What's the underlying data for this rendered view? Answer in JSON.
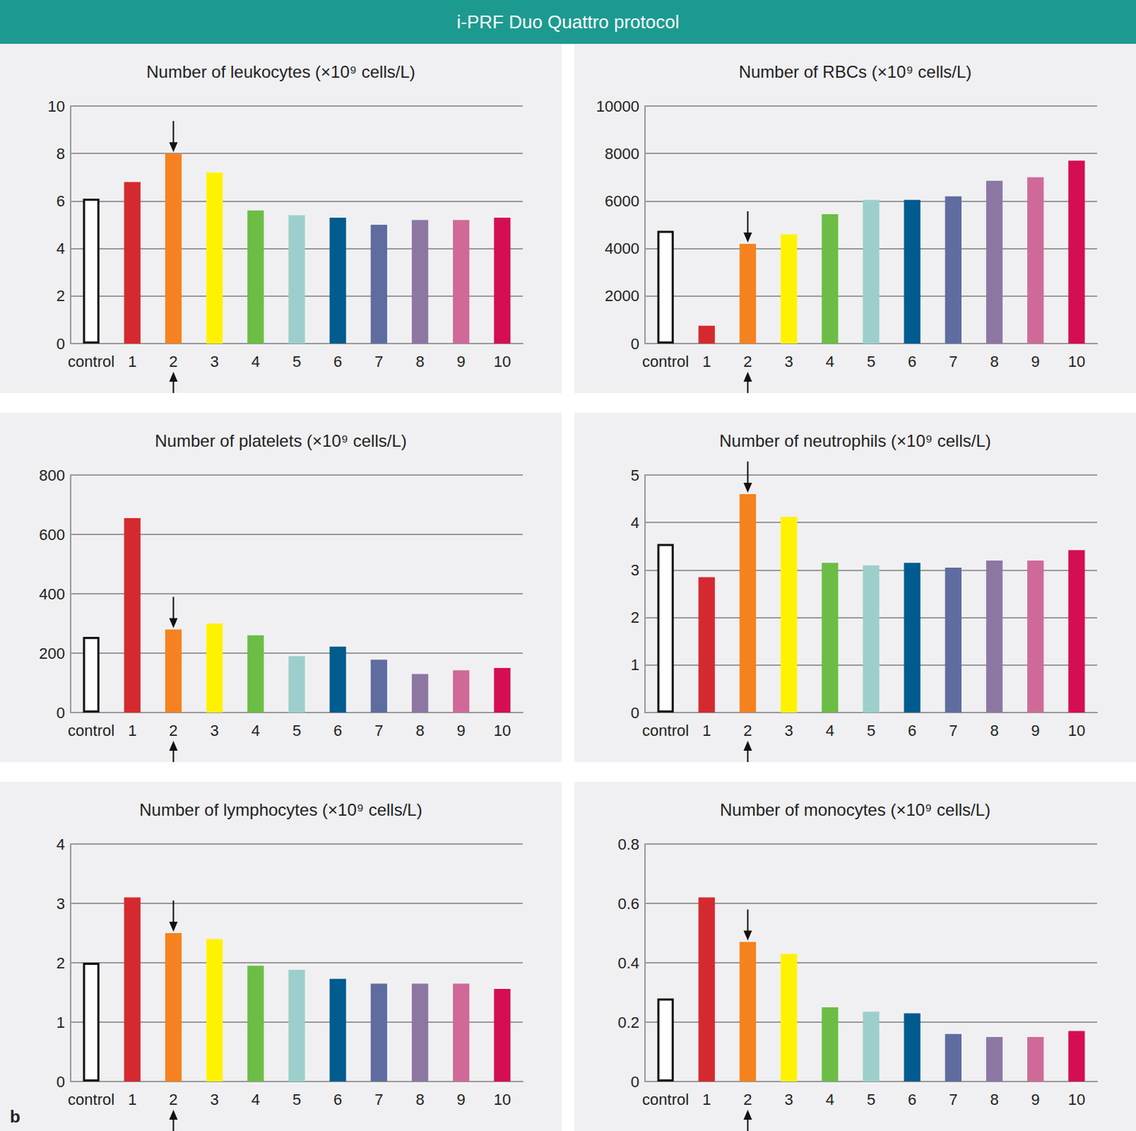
{
  "header": {
    "title": "i-PRF Duo Quattro protocol"
  },
  "panel_label": "b",
  "chart_data": [
    {
      "type": "bar",
      "title": "Number of leukocytes (×10⁹ cells/L)",
      "categories": [
        "control",
        "1",
        "2",
        "3",
        "4",
        "5",
        "6",
        "7",
        "8",
        "9",
        "10"
      ],
      "values": [
        6.1,
        6.8,
        8.0,
        7.2,
        5.6,
        5.4,
        5.3,
        5.0,
        5.2,
        5.2,
        5.3
      ],
      "colors": [
        "#ffffff",
        "#d42a2f",
        "#f5821f",
        "#fff200",
        "#6cbd45",
        "#9ccfcb",
        "#005b8f",
        "#5e6ca0",
        "#8c77a3",
        "#cf6a98",
        "#d50d52"
      ],
      "ylim": [
        0,
        10
      ],
      "yticks": [
        0,
        2,
        4,
        6,
        8,
        10
      ],
      "grid": true
    },
    {
      "type": "bar",
      "title": "Number of RBCs (×10⁹ cells/L)",
      "categories": [
        "control",
        "1",
        "2",
        "3",
        "4",
        "5",
        "6",
        "7",
        "8",
        "9",
        "10"
      ],
      "values": [
        4750,
        750,
        4200,
        4600,
        5450,
        6050,
        6050,
        6200,
        6850,
        7000,
        7700
      ],
      "colors": [
        "#ffffff",
        "#d42a2f",
        "#f5821f",
        "#fff200",
        "#6cbd45",
        "#9ccfcb",
        "#005b8f",
        "#5e6ca0",
        "#8c77a3",
        "#cf6a98",
        "#d50d52"
      ],
      "ylim": [
        0,
        10000
      ],
      "yticks": [
        0,
        2000,
        4000,
        6000,
        8000,
        10000
      ],
      "grid": true
    },
    {
      "type": "bar",
      "title": "Number of platelets (×10⁹ cells/L)",
      "categories": [
        "control",
        "1",
        "2",
        "3",
        "4",
        "5",
        "6",
        "7",
        "8",
        "9",
        "10"
      ],
      "values": [
        255,
        655,
        280,
        300,
        260,
        190,
        222,
        178,
        130,
        142,
        150
      ],
      "colors": [
        "#ffffff",
        "#d42a2f",
        "#f5821f",
        "#fff200",
        "#6cbd45",
        "#9ccfcb",
        "#005b8f",
        "#5e6ca0",
        "#8c77a3",
        "#cf6a98",
        "#d50d52"
      ],
      "ylim": [
        0,
        800
      ],
      "yticks": [
        0,
        200,
        400,
        600,
        800
      ],
      "grid": true
    },
    {
      "type": "bar",
      "title": "Number of neutrophils (×10⁹ cells/L)",
      "categories": [
        "control",
        "1",
        "2",
        "3",
        "4",
        "5",
        "6",
        "7",
        "8",
        "9",
        "10"
      ],
      "values": [
        3.55,
        2.85,
        4.6,
        4.12,
        3.15,
        3.1,
        3.15,
        3.05,
        3.2,
        3.2,
        3.42
      ],
      "colors": [
        "#ffffff",
        "#d42a2f",
        "#f5821f",
        "#fff200",
        "#6cbd45",
        "#9ccfcb",
        "#005b8f",
        "#5e6ca0",
        "#8c77a3",
        "#cf6a98",
        "#d50d52"
      ],
      "ylim": [
        0,
        5
      ],
      "yticks": [
        0,
        1,
        2,
        3,
        4,
        5
      ],
      "grid": true
    },
    {
      "type": "bar",
      "title": "Number of lymphocytes (×10⁹ cells/L)",
      "categories": [
        "control",
        "1",
        "2",
        "3",
        "4",
        "5",
        "6",
        "7",
        "8",
        "9",
        "10"
      ],
      "values": [
        2.0,
        3.1,
        2.5,
        2.4,
        1.95,
        1.88,
        1.73,
        1.65,
        1.65,
        1.65,
        1.56
      ],
      "colors": [
        "#ffffff",
        "#d42a2f",
        "#f5821f",
        "#fff200",
        "#6cbd45",
        "#9ccfcb",
        "#005b8f",
        "#5e6ca0",
        "#8c77a3",
        "#cf6a98",
        "#d50d52"
      ],
      "ylim": [
        0,
        4
      ],
      "yticks": [
        0,
        1,
        2,
        3,
        4
      ],
      "grid": true
    },
    {
      "type": "bar",
      "title": "Number of monocytes (×10⁹ cells/L)",
      "categories": [
        "control",
        "1",
        "2",
        "3",
        "4",
        "5",
        "6",
        "7",
        "8",
        "9",
        "10"
      ],
      "values": [
        0.28,
        0.62,
        0.47,
        0.43,
        0.25,
        0.235,
        0.23,
        0.16,
        0.15,
        0.15,
        0.17
      ],
      "colors": [
        "#ffffff",
        "#d42a2f",
        "#f5821f",
        "#fff200",
        "#6cbd45",
        "#9ccfcb",
        "#005b8f",
        "#5e6ca0",
        "#8c77a3",
        "#cf6a98",
        "#d50d52"
      ],
      "ylim": [
        0,
        0.8
      ],
      "yticks": [
        0,
        0.2,
        0.4,
        0.6,
        0.8
      ],
      "grid": true
    }
  ]
}
